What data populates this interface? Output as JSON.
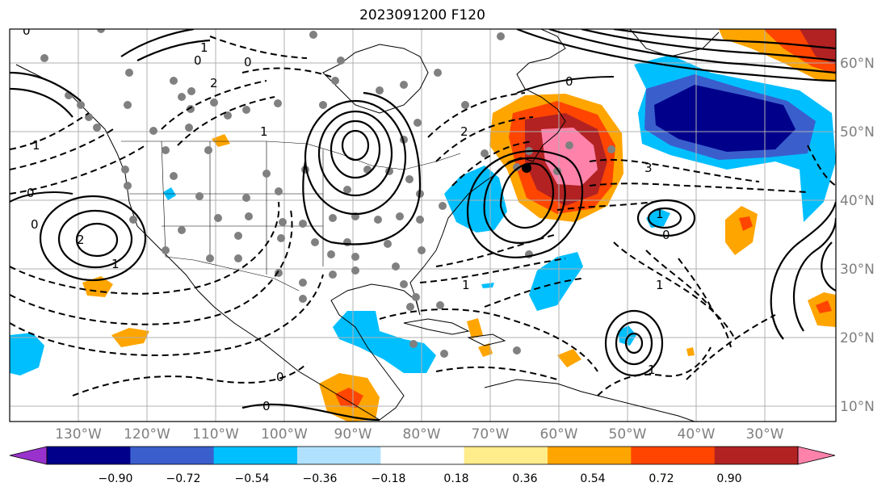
{
  "title": "2023091200 F120",
  "map": {
    "lon_labels": [
      "130°W",
      "120°W",
      "110°W",
      "100°W",
      "90°W",
      "80°W",
      "70°W",
      "60°W",
      "50°W",
      "40°W",
      "30°W"
    ],
    "lat_labels": [
      "60°N",
      "50°N",
      "40°N",
      "30°N",
      "20°N",
      "10°N"
    ],
    "contour_labels": [
      "0",
      "1",
      "2",
      "0",
      "0",
      "3",
      "2",
      "1",
      "0",
      "1",
      "0",
      "2",
      "0",
      "1",
      "1",
      "1",
      "0",
      "0",
      "0",
      "1",
      "1"
    ]
  },
  "colorbar": {
    "ticks": [
      "−0.90",
      "−0.72",
      "−0.54",
      "−0.36",
      "−0.18",
      "0.18",
      "0.36",
      "0.54",
      "0.72",
      "0.90"
    ],
    "colors": [
      "#9932cc",
      "#00008b",
      "#3a5fcd",
      "#00bfff",
      "#b0e2ff",
      "#ffffff",
      "#ffec8b",
      "#ffa500",
      "#ff4500",
      "#b22222",
      "#ff82ab"
    ]
  }
}
